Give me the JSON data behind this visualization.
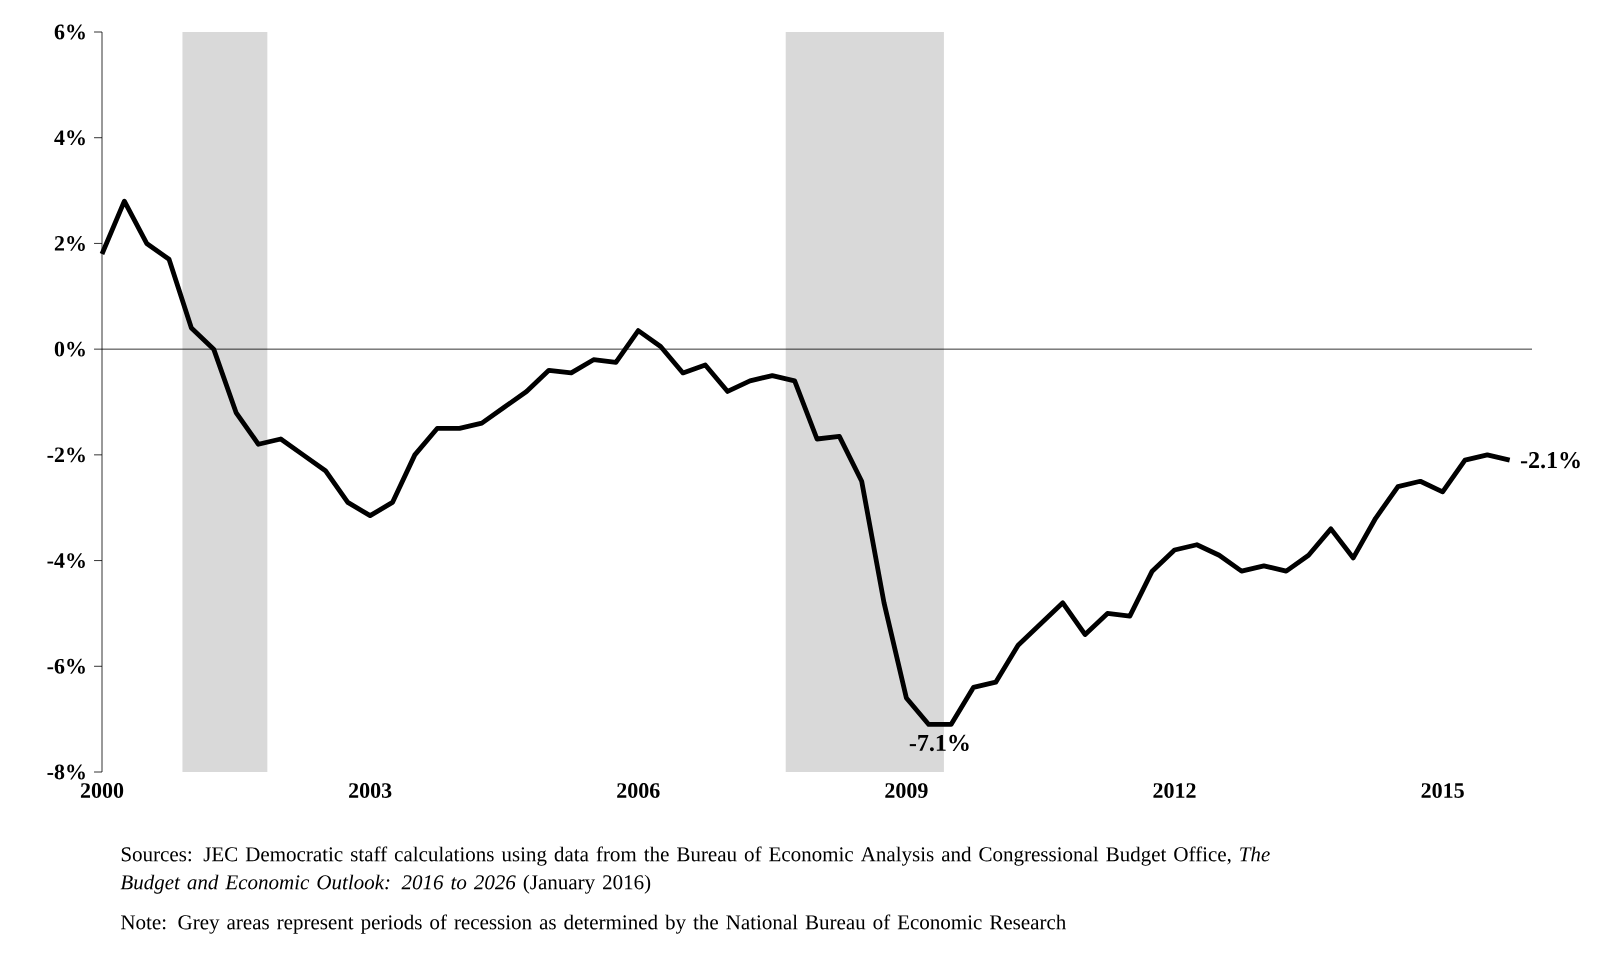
{
  "chart_data": {
    "type": "line",
    "x": [
      2000,
      2000.25,
      2000.5,
      2000.75,
      2001,
      2001.25,
      2001.5,
      2001.75,
      2002,
      2002.25,
      2002.5,
      2002.75,
      2003,
      2003.25,
      2003.5,
      2003.75,
      2004,
      2004.25,
      2004.5,
      2004.75,
      2005,
      2005.25,
      2005.5,
      2005.75,
      2006,
      2006.25,
      2006.5,
      2006.75,
      2007,
      2007.25,
      2007.5,
      2007.75,
      2008,
      2008.25,
      2008.5,
      2008.75,
      2009,
      2009.25,
      2009.5,
      2009.75,
      2010,
      2010.25,
      2010.5,
      2010.75,
      2011,
      2011.25,
      2011.5,
      2011.75,
      2012,
      2012.25,
      2012.5,
      2012.75,
      2013,
      2013.25,
      2013.5,
      2013.75,
      2014,
      2014.25,
      2014.5,
      2014.75,
      2015,
      2015.25,
      2015.5,
      2015.75
    ],
    "series": [
      {
        "color": "#000000",
        "values": [
          1.8,
          2.8,
          2.0,
          1.7,
          0.4,
          0.0,
          -1.2,
          -1.8,
          -1.7,
          -2.0,
          -2.3,
          -2.9,
          -3.15,
          -2.9,
          -2.0,
          -1.5,
          -1.5,
          -1.4,
          -1.1,
          -0.8,
          -0.4,
          -0.45,
          -0.2,
          -0.25,
          0.35,
          0.05,
          -0.45,
          -0.3,
          -0.8,
          -0.6,
          -0.5,
          -0.6,
          -1.7,
          -1.65,
          -2.5,
          -4.8,
          -6.6,
          -7.1,
          -7.1,
          -6.4,
          -6.3,
          -5.6,
          -5.2,
          -4.8,
          -5.4,
          -5.0,
          -5.05,
          -4.2,
          -3.8,
          -3.7,
          -3.9,
          -4.2,
          -4.1,
          -4.2,
          -3.9,
          -3.4,
          -3.95,
          -3.2,
          -2.6,
          -2.5,
          -2.7,
          -2.1,
          -2.0,
          -2.1
        ]
      }
    ],
    "xlim": [
      2000,
      2016
    ],
    "xticks": [
      2000,
      2003,
      2006,
      2009,
      2012,
      2015
    ],
    "ylim": [
      -8,
      6
    ],
    "yticks": [
      {
        "value": -8,
        "label": "-8%"
      },
      {
        "value": -6,
        "label": "-6%"
      },
      {
        "value": -4,
        "label": "-4%"
      },
      {
        "value": -2,
        "label": "-2%"
      },
      {
        "value": 0,
        "label": "0%"
      },
      {
        "value": 2,
        "label": "2%"
      },
      {
        "value": 4,
        "label": "4%"
      },
      {
        "value": 6,
        "label": "6%"
      }
    ],
    "bands": [
      {
        "axis": "x",
        "from": 2000.9,
        "to": 2001.85,
        "color": "#d9d9d9"
      },
      {
        "axis": "x",
        "from": 2007.65,
        "to": 2009.42,
        "color": "#d9d9d9"
      }
    ],
    "ref_lines": [
      {
        "axis": "y",
        "value": 0,
        "color": "#000000"
      }
    ],
    "line_style": "solid",
    "marker": "none",
    "grid": false,
    "annotations": [
      {
        "text": "-7.1%",
        "x": 2009.375,
        "y": -7.1
      },
      {
        "text": "-2.1%",
        "x": 2015.75,
        "y": -2.1
      },
      "Sources: JEC Democratic staff calculations using data from the Bureau of Economic Analysis and Congressional Budget Office, *The Budget and Economic Outlook: 2016 to 2026* (January 2016)",
      "Note: Grey areas represent periods of recession as determined by the National Bureau of Economic Research"
    ]
  }
}
